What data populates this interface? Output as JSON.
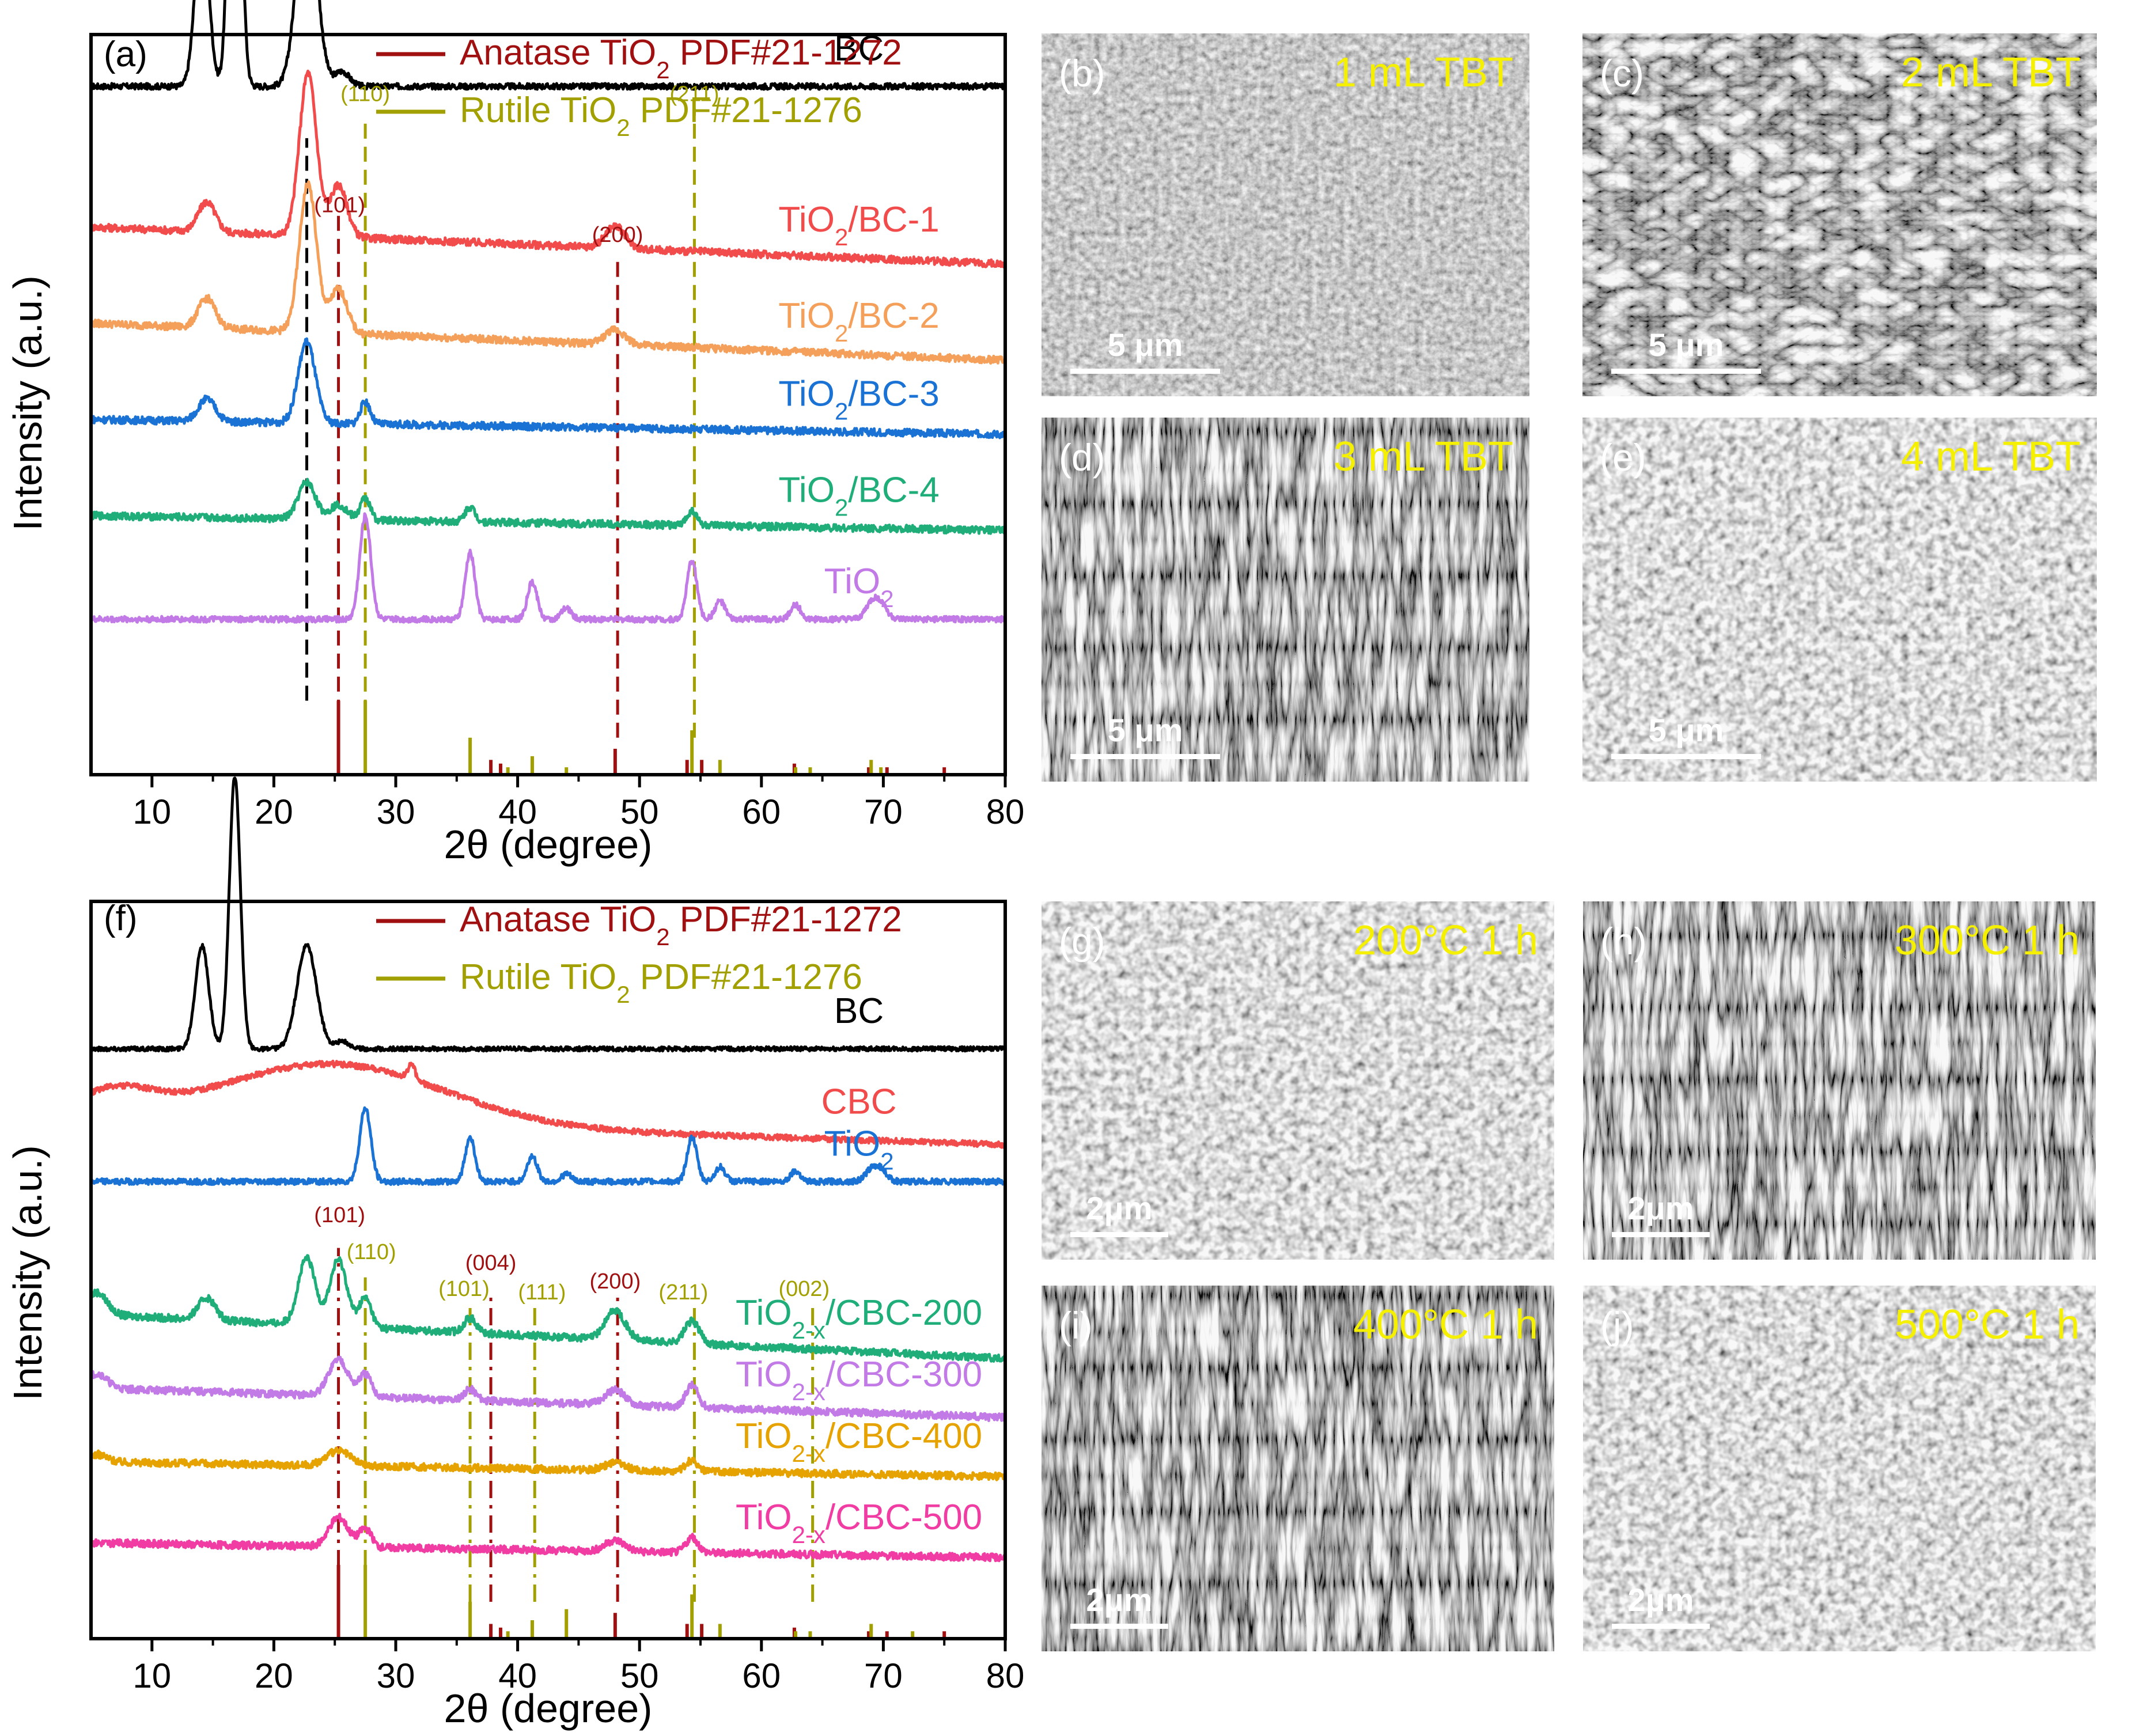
{
  "chart_data": [
    {
      "type": "line",
      "panel_label": "(a)",
      "xlabel": "2θ (degree)",
      "ylabel": "Intensity (a.u.)",
      "xlim": [
        5,
        80
      ],
      "xticks": [
        10,
        20,
        30,
        40,
        50,
        60,
        70,
        80
      ],
      "tick_labels": [
        "10",
        "20",
        "30",
        "40",
        "50",
        "60",
        "70",
        "80"
      ],
      "legend": [
        {
          "prefix": "Anatase TiO",
          "sub": "2",
          "suffix": " PDF#21-1272",
          "color": "#a01010"
        },
        {
          "prefix": "Rutile TiO",
          "sub": "2",
          "suffix": " PDF#21-1276",
          "color": "#a2a000"
        }
      ],
      "series": [
        {
          "name": "BC",
          "label_main": "BC",
          "label_sub": "",
          "label_tail": "",
          "color": "#000000",
          "offset": 0.93,
          "baseline": 0.0,
          "noise": 0.004,
          "peaks": [
            [
              14.1,
              0.23,
              0.55
            ],
            [
              16.8,
              0.6,
              0.45
            ],
            [
              22.7,
              0.27,
              0.8
            ],
            [
              25.6,
              0.02,
              0.6
            ]
          ]
        },
        {
          "name": "TiO2/BC-1",
          "label_main": "TiO",
          "label_sub": "2",
          "label_tail": "/BC-1",
          "color": "#f24b4b",
          "offset": 0.74,
          "baseline": -0.05,
          "noise": 0.005,
          "peaks": [
            [
              14.5,
              0.04,
              0.7
            ],
            [
              22.8,
              0.22,
              0.7
            ],
            [
              25.3,
              0.07,
              0.7
            ],
            [
              48.0,
              0.03,
              0.8
            ]
          ]
        },
        {
          "name": "TiO2/BC-2",
          "label_main": "TiO",
          "label_sub": "2",
          "label_tail": "/BC-2",
          "color": "#f5a05a",
          "offset": 0.61,
          "baseline": -0.05,
          "noise": 0.005,
          "peaks": [
            [
              14.5,
              0.04,
              0.7
            ],
            [
              22.8,
              0.2,
              0.7
            ],
            [
              25.3,
              0.06,
              0.7
            ],
            [
              48.0,
              0.02,
              0.8
            ]
          ]
        },
        {
          "name": "TiO2/BC-3",
          "label_main": "TiO",
          "label_sub": "2",
          "label_tail": "/BC-3",
          "color": "#1a73d4",
          "offset": 0.48,
          "baseline": -0.02,
          "noise": 0.005,
          "peaks": [
            [
              14.5,
              0.03,
              0.7
            ],
            [
              22.7,
              0.11,
              0.7
            ],
            [
              27.5,
              0.03,
              0.4
            ]
          ]
        },
        {
          "name": "TiO2/BC-4",
          "label_main": "TiO",
          "label_sub": "2",
          "label_tail": "/BC-4",
          "color": "#1fae7a",
          "offset": 0.35,
          "baseline": -0.02,
          "noise": 0.005,
          "peaks": [
            [
              22.7,
              0.05,
              0.7
            ],
            [
              25.3,
              0.02,
              0.7
            ],
            [
              27.5,
              0.03,
              0.4
            ],
            [
              36.1,
              0.02,
              0.4
            ],
            [
              54.3,
              0.02,
              0.4
            ]
          ]
        },
        {
          "name": "TiO2",
          "label_main": "TiO",
          "label_sub": "2",
          "label_tail": "",
          "color": "#c27ae6",
          "offset": 0.21,
          "baseline": 0.0,
          "noise": 0.004,
          "peaks": [
            [
              27.5,
              0.14,
              0.45
            ],
            [
              36.1,
              0.09,
              0.4
            ],
            [
              41.2,
              0.05,
              0.4
            ],
            [
              44.0,
              0.015,
              0.4
            ],
            [
              54.3,
              0.08,
              0.4
            ],
            [
              56.6,
              0.025,
              0.4
            ],
            [
              62.8,
              0.02,
              0.4
            ],
            [
              69.0,
              0.02,
              0.5
            ],
            [
              69.8,
              0.02,
              0.5
            ]
          ]
        }
      ],
      "reference_anatase": [
        [
          25.3,
          0.1
        ],
        [
          37.8,
          0.02
        ],
        [
          38.6,
          0.015
        ],
        [
          48.0,
          0.035
        ],
        [
          53.9,
          0.02
        ],
        [
          55.1,
          0.02
        ],
        [
          62.7,
          0.015
        ],
        [
          68.8,
          0.01
        ],
        [
          70.3,
          0.01
        ],
        [
          75.0,
          0.01
        ]
      ],
      "reference_rutile": [
        [
          27.5,
          0.1
        ],
        [
          36.1,
          0.05
        ],
        [
          39.2,
          0.01
        ],
        [
          41.2,
          0.025
        ],
        [
          44.0,
          0.01
        ],
        [
          54.3,
          0.06
        ],
        [
          56.6,
          0.02
        ],
        [
          62.8,
          0.01
        ],
        [
          64.0,
          0.01
        ],
        [
          69.0,
          0.02
        ],
        [
          69.8,
          0.01
        ]
      ],
      "guides": [
        {
          "x": 22.7,
          "color": "#000000",
          "style": "dash",
          "from": 0.1,
          "to": 0.86
        },
        {
          "x": 25.3,
          "color": "#a01010",
          "style": "dash",
          "from": 0.05,
          "to": 0.76
        },
        {
          "x": 27.5,
          "color": "#a2a000",
          "style": "dash",
          "from": 0.05,
          "to": 0.89
        },
        {
          "x": 48.2,
          "color": "#a01010",
          "style": "dash",
          "from": 0.05,
          "to": 0.7
        },
        {
          "x": 54.5,
          "color": "#a2a000",
          "style": "dash",
          "from": 0.05,
          "to": 0.9
        }
      ],
      "hkl": [
        {
          "text": "(110)",
          "x": 27.5,
          "y": 0.91,
          "color": "#a2a000"
        },
        {
          "text": "(211)",
          "x": 54.5,
          "y": 0.91,
          "color": "#a2a000"
        },
        {
          "text": "(101)",
          "x": 25.4,
          "y": 0.76,
          "color": "#a01010"
        },
        {
          "text": "(200)",
          "x": 48.2,
          "y": 0.72,
          "color": "#a01010"
        }
      ]
    },
    {
      "type": "line",
      "panel_label": "(f)",
      "xlabel": "2θ (degree)",
      "ylabel": "Intensity (a.u.)",
      "xlim": [
        5,
        80
      ],
      "xticks": [
        10,
        20,
        30,
        40,
        50,
        60,
        70,
        80
      ],
      "tick_labels": [
        "10",
        "20",
        "30",
        "40",
        "50",
        "60",
        "70",
        "80"
      ],
      "legend": [
        {
          "prefix": "Anatase TiO",
          "sub": "2",
          "suffix": " PDF#21-1272",
          "color": "#a01010"
        },
        {
          "prefix": "Rutile TiO",
          "sub": "2",
          "suffix": " PDF#21-1276",
          "color": "#a2a000"
        }
      ],
      "series": [
        {
          "name": "BC",
          "label_main": "BC",
          "label_sub": "",
          "label_tail": "",
          "color": "#000000",
          "offset": 0.8,
          "baseline": 0.0,
          "noise": 0.003,
          "peaks": [
            [
              14.1,
              0.14,
              0.55
            ],
            [
              16.8,
              0.37,
              0.45
            ],
            [
              22.7,
              0.14,
              0.8
            ],
            [
              25.6,
              0.01,
              0.6
            ]
          ]
        },
        {
          "name": "CBC",
          "label_main": "CBC",
          "label_sub": "",
          "label_tail": "",
          "color": "#f24b4b",
          "offset": 0.71,
          "baseline": -0.04,
          "noise": 0.004,
          "peaks": [
            [
              7.0,
              0.03,
              3.0
            ],
            [
              25.0,
              0.08,
              9.0
            ],
            [
              31.3,
              0.02,
              0.3
            ]
          ]
        },
        {
          "name": "TiO2",
          "label_main": "TiO",
          "label_sub": "2",
          "label_tail": "",
          "color": "#1a73d4",
          "offset": 0.62,
          "baseline": 0.0,
          "noise": 0.004,
          "peaks": [
            [
              27.5,
              0.1,
              0.45
            ],
            [
              36.1,
              0.06,
              0.4
            ],
            [
              41.2,
              0.035,
              0.4
            ],
            [
              44.0,
              0.01,
              0.4
            ],
            [
              54.3,
              0.06,
              0.4
            ],
            [
              56.6,
              0.02,
              0.4
            ],
            [
              62.8,
              0.015,
              0.4
            ],
            [
              69.0,
              0.015,
              0.5
            ],
            [
              69.8,
              0.015,
              0.5
            ]
          ]
        },
        {
          "name": "TiO2-x/CBC-200",
          "label_main": "TiO",
          "label_sub": "2-x",
          "label_tail": "/CBC-200",
          "color": "#1fae7a",
          "offset": 0.44,
          "baseline": -0.06,
          "noise": 0.005,
          "peaks": [
            [
              5.5,
              0.03,
              0.8
            ],
            [
              14.5,
              0.03,
              0.7
            ],
            [
              22.7,
              0.09,
              0.7
            ],
            [
              25.3,
              0.09,
              0.7
            ],
            [
              27.5,
              0.04,
              0.5
            ],
            [
              36.1,
              0.02,
              0.5
            ],
            [
              48.0,
              0.04,
              0.8
            ],
            [
              54.3,
              0.03,
              0.6
            ]
          ]
        },
        {
          "name": "TiO2-x/CBC-300",
          "label_main": "TiO",
          "label_sub": "2-x",
          "label_tail": "/CBC-300",
          "color": "#c27ae6",
          "offset": 0.34,
          "baseline": -0.04,
          "noise": 0.005,
          "peaks": [
            [
              5.5,
              0.02,
              0.8
            ],
            [
              25.3,
              0.05,
              0.8
            ],
            [
              27.5,
              0.03,
              0.5
            ],
            [
              36.1,
              0.015,
              0.5
            ],
            [
              48.0,
              0.02,
              0.8
            ],
            [
              54.3,
              0.03,
              0.5
            ]
          ]
        },
        {
          "name": "TiO2-x/CBC-400",
          "label_main": "TiO",
          "label_sub": "2-x",
          "label_tail": "/CBC-400",
          "color": "#e6a300",
          "offset": 0.24,
          "baseline": -0.02,
          "noise": 0.005,
          "peaks": [
            [
              5.5,
              0.01,
              0.8
            ],
            [
              25.3,
              0.02,
              1.0
            ],
            [
              48.0,
              0.01,
              0.8
            ],
            [
              54.3,
              0.015,
              0.5
            ]
          ]
        },
        {
          "name": "TiO2-x/CBC-500",
          "label_main": "TiO",
          "label_sub": "2-x",
          "label_tail": "/CBC-500",
          "color": "#f03ca3",
          "offset": 0.13,
          "baseline": -0.02,
          "noise": 0.005,
          "peaks": [
            [
              25.3,
              0.04,
              0.8
            ],
            [
              27.5,
              0.025,
              0.5
            ],
            [
              48.0,
              0.015,
              0.8
            ],
            [
              54.3,
              0.02,
              0.5
            ]
          ]
        }
      ],
      "reference_anatase": [
        [
          25.3,
          0.1
        ],
        [
          37.8,
          0.02
        ],
        [
          38.6,
          0.015
        ],
        [
          48.0,
          0.035
        ],
        [
          53.9,
          0.02
        ],
        [
          55.1,
          0.02
        ],
        [
          62.7,
          0.015
        ],
        [
          68.8,
          0.01
        ],
        [
          70.3,
          0.01
        ],
        [
          75.0,
          0.01
        ]
      ],
      "reference_rutile": [
        [
          27.5,
          0.1
        ],
        [
          36.1,
          0.05
        ],
        [
          39.2,
          0.01
        ],
        [
          41.2,
          0.025
        ],
        [
          44.0,
          0.04
        ],
        [
          54.3,
          0.06
        ],
        [
          56.6,
          0.02
        ],
        [
          62.8,
          0.01
        ],
        [
          64.0,
          0.01
        ],
        [
          69.0,
          0.02
        ],
        [
          72.4,
          0.01
        ]
      ],
      "guides": [
        {
          "x": 25.3,
          "color": "#a01010",
          "style": "dashdot",
          "from": 0.05,
          "to": 0.53
        },
        {
          "x": 27.5,
          "color": "#a2a000",
          "style": "dashdot",
          "from": 0.05,
          "to": 0.49
        },
        {
          "x": 36.1,
          "color": "#a2a000",
          "style": "dashdot",
          "from": 0.05,
          "to": 0.45
        },
        {
          "x": 37.8,
          "color": "#a01010",
          "style": "dashdot",
          "from": 0.05,
          "to": 0.47
        },
        {
          "x": 41.4,
          "color": "#a2a000",
          "style": "dashdot",
          "from": 0.05,
          "to": 0.45
        },
        {
          "x": 48.2,
          "color": "#a01010",
          "style": "dashdot",
          "from": 0.05,
          "to": 0.47
        },
        {
          "x": 54.5,
          "color": "#a2a000",
          "style": "dashdot",
          "from": 0.05,
          "to": 0.45
        },
        {
          "x": 64.2,
          "color": "#a2a000",
          "style": "dashdot",
          "from": 0.05,
          "to": 0.45
        }
      ],
      "hkl": [
        {
          "text": "(101)",
          "x": 25.4,
          "y": 0.565,
          "color": "#a01010"
        },
        {
          "text": "(110)",
          "x": 28.0,
          "y": 0.515,
          "color": "#a2a000"
        },
        {
          "text": "(004)",
          "x": 37.8,
          "y": 0.5,
          "color": "#a01010"
        },
        {
          "text": "(101)",
          "x": 35.6,
          "y": 0.465,
          "color": "#a2a000"
        },
        {
          "text": "(111)",
          "x": 42.0,
          "y": 0.46,
          "color": "#a2a000"
        },
        {
          "text": "(200)",
          "x": 48.0,
          "y": 0.475,
          "color": "#a01010"
        },
        {
          "text": "(211)",
          "x": 53.6,
          "y": 0.46,
          "color": "#a2a000"
        },
        {
          "text": "(002)",
          "x": 63.5,
          "y": 0.465,
          "color": "#a2a000"
        }
      ]
    }
  ],
  "sem_panels": [
    {
      "label": "(b)",
      "caption": "1 mL TBT",
      "scale": "5 μm",
      "texture": "fine"
    },
    {
      "label": "(c)",
      "caption": "2 mL TBT",
      "scale": "5 μm",
      "texture": "mesh"
    },
    {
      "label": "(d)",
      "caption": "3 mL TBT",
      "scale": "5 μm",
      "texture": "fiber"
    },
    {
      "label": "(e)",
      "caption": "4 mL TBT",
      "scale": "5 μm",
      "texture": "bead"
    },
    {
      "label": "(g)",
      "caption": "200°C 1 h",
      "scale": "2μm",
      "texture": "bead"
    },
    {
      "label": "(h)",
      "caption": "300°C 1 h",
      "scale": "2μm",
      "texture": "fiber"
    },
    {
      "label": "(i)",
      "caption": "400°C 1 h",
      "scale": "2μm",
      "texture": "fiber"
    },
    {
      "label": "(j)",
      "caption": "500°C 1 h",
      "scale": "2μm",
      "texture": "bead"
    }
  ]
}
